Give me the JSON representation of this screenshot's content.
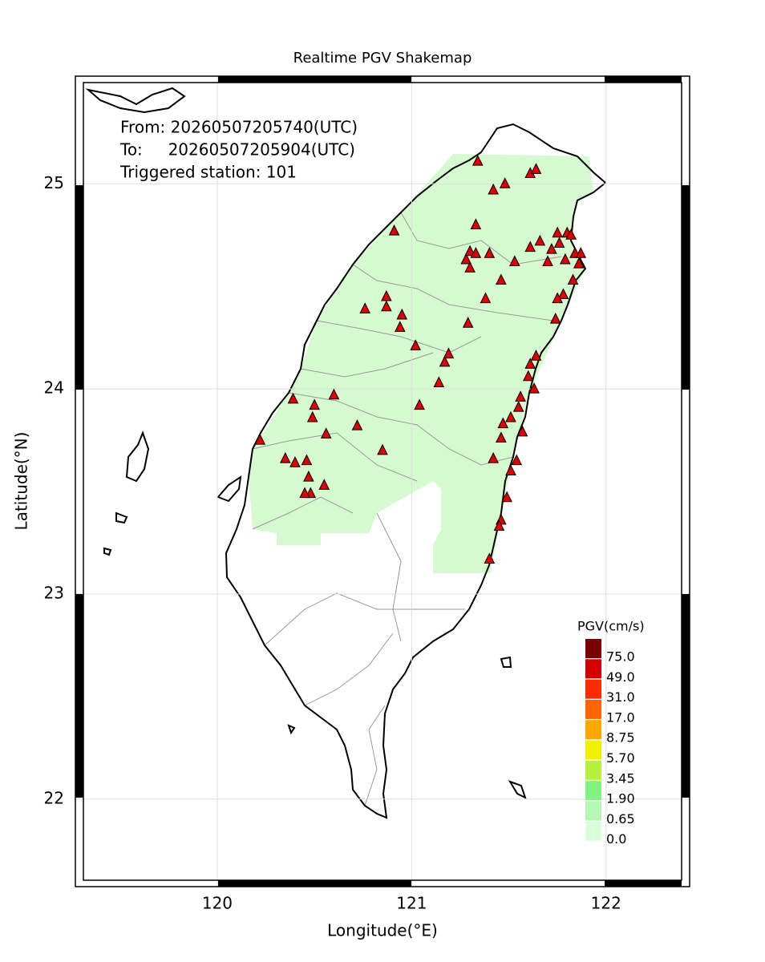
{
  "chart_data": {
    "type": "map",
    "title": "Realtime PGV Shakemap",
    "info": [
      "From: 20260507205740(UTC)",
      "To:     20260507205904(UTC)",
      "Triggered station: 101"
    ],
    "xlabel": "Longitude(°E)",
    "ylabel": "Latitude(°N)",
    "xlim": [
      119.27,
      122.43
    ],
    "ylim": [
      21.573,
      25.525
    ],
    "xticks": [
      120,
      121,
      122
    ],
    "yticks": [
      22,
      23,
      24,
      25
    ],
    "grid": true,
    "station_color": "#e00000",
    "stations": {
      "x": [
        121.34,
        121.42,
        121.48,
        121.61,
        121.64,
        121.33,
        121.3,
        121.33,
        121.28,
        121.3,
        121.4,
        121.53,
        121.46,
        121.38,
        121.61,
        121.66,
        121.7,
        121.75,
        121.8,
        121.82,
        121.76,
        121.84,
        121.86,
        121.87,
        121.79,
        121.72,
        121.83,
        121.78,
        121.75,
        121.74,
        120.91,
        120.87,
        120.87,
        120.76,
        120.95,
        120.94,
        121.29,
        121.02,
        121.19,
        121.17,
        121.14,
        121.04,
        121.64,
        121.61,
        121.6,
        121.63,
        121.56,
        121.55,
        121.51,
        121.47,
        121.46,
        121.57,
        121.42,
        121.54,
        121.51,
        121.49,
        121.46,
        121.45,
        121.4,
        120.6,
        120.39,
        120.5,
        120.49,
        120.72,
        120.56,
        120.22,
        120.85,
        120.35,
        120.4,
        120.46,
        120.47,
        120.55,
        120.48,
        120.45
      ],
      "y": [
        25.11,
        24.97,
        25.0,
        25.05,
        25.07,
        24.8,
        24.67,
        24.66,
        24.63,
        24.59,
        24.66,
        24.62,
        24.53,
        24.44,
        24.69,
        24.72,
        24.62,
        24.76,
        24.76,
        24.75,
        24.71,
        24.66,
        24.61,
        24.66,
        24.63,
        24.68,
        24.53,
        24.46,
        24.44,
        24.34,
        24.77,
        24.45,
        24.4,
        24.39,
        24.36,
        24.3,
        24.32,
        24.21,
        24.17,
        24.13,
        24.03,
        23.92,
        24.16,
        24.12,
        24.06,
        24.0,
        23.96,
        23.91,
        23.86,
        23.83,
        23.76,
        23.79,
        23.66,
        23.65,
        23.6,
        23.47,
        23.36,
        23.33,
        23.17,
        23.97,
        23.95,
        23.92,
        23.86,
        23.82,
        23.78,
        23.75,
        23.7,
        23.66,
        23.64,
        23.65,
        23.57,
        23.53,
        23.49,
        23.49
      ]
    },
    "legend": {
      "title": "PGV(cm/s)",
      "labels": [
        {
          "value": 75,
          "label": "75.0"
        },
        {
          "value": 49,
          "label": "49.0"
        },
        {
          "value": 31,
          "label": "31.0"
        },
        {
          "value": 17,
          "label": "17.0"
        },
        8.75,
        {
          "value": 5.7,
          "label": "5.70"
        },
        3.45,
        {
          "value": 1.9,
          "label": "1.90"
        },
        0.65,
        {
          "value": 0,
          "label": "0.0"
        }
      ],
      "colors": [
        "#7a0000",
        "#d40000",
        "#ff2a00",
        "#ff6400",
        "#ffa800",
        "#f0f000",
        "#b4f03c",
        "#82f282",
        "#b4f8b4",
        "#d8ffd8"
      ]
    }
  }
}
